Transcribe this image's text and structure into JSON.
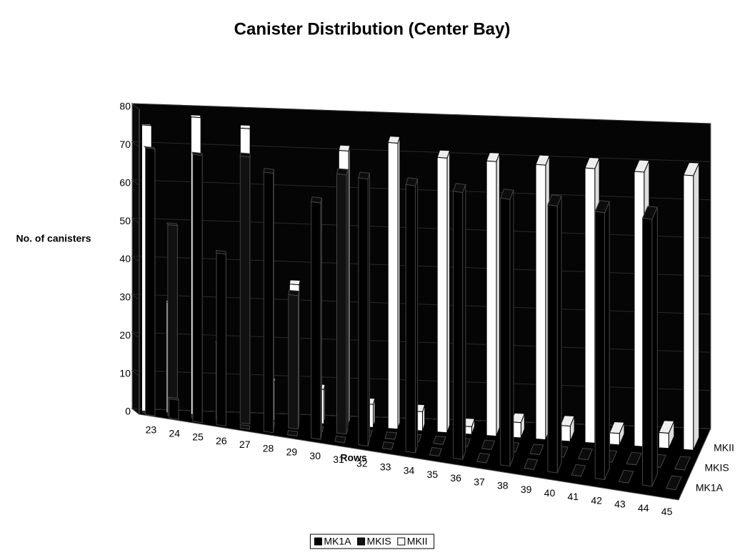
{
  "chart_data": {
    "type": "bar3d",
    "title": "Canister Distribution (Center Bay)",
    "y_label": "No. of canisters",
    "x_label": "Rows",
    "categories": [
      "23",
      "24",
      "25",
      "26",
      "27",
      "28",
      "29",
      "30",
      "31",
      "32",
      "33",
      "34",
      "35",
      "36",
      "37",
      "38",
      "39",
      "40",
      "41",
      "42",
      "43",
      "44",
      "45"
    ],
    "series": [
      {
        "name": "MK1A",
        "color": "#000000",
        "values": [
          70,
          5,
          70,
          45,
          0,
          68,
          0,
          62,
          0,
          70,
          0,
          70,
          0,
          70,
          0,
          70,
          0,
          70,
          0,
          70,
          0,
          70,
          0
        ]
      },
      {
        "name": "MKIS",
        "color": "#111111",
        "values": [
          0,
          50,
          0,
          20,
          70,
          0,
          35,
          0,
          68,
          0,
          0,
          0,
          0,
          0,
          0,
          0,
          0,
          0,
          0,
          0,
          0,
          0,
          0
        ]
      },
      {
        "name": "MKII",
        "color": "#ffffff",
        "values": [
          75,
          29,
          78,
          10,
          76,
          10,
          36,
          9,
          72,
          6,
          75,
          5,
          72,
          2,
          72,
          4,
          72,
          4,
          72,
          3,
          72,
          4,
          72
        ]
      }
    ],
    "ylim": [
      0,
      80
    ],
    "yticks": [
      0,
      10,
      20,
      30,
      40,
      50,
      60,
      70,
      80
    ],
    "grid": true,
    "legend": "bottom"
  }
}
